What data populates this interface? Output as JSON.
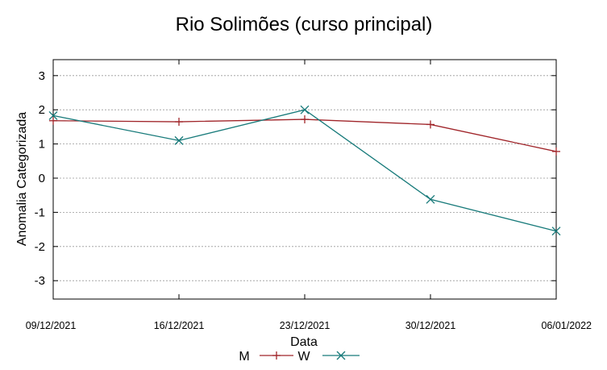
{
  "chart_data": {
    "type": "line",
    "title": "Rio Solimões (curso principal)",
    "xlabel": "Data",
    "ylabel": "Anomalia Categorizada",
    "categories": [
      "09/12/2021",
      "16/12/2021",
      "23/12/2021",
      "30/12/2021",
      "06/01/2022"
    ],
    "yticks": [
      "3",
      "2",
      "1",
      "0",
      "-1",
      "-2",
      "-3"
    ],
    "ylim": [
      -3.5,
      3.5
    ],
    "grid": true,
    "legend_position": "bottom",
    "series": [
      {
        "name": "M",
        "color": "#a0252a",
        "marker": "plus",
        "values": [
          1.68,
          1.65,
          1.72,
          1.57,
          0.78
        ]
      },
      {
        "name": "W",
        "color": "#177a7a",
        "marker": "cross",
        "values": [
          1.83,
          1.1,
          2.0,
          -0.62,
          -1.55
        ]
      }
    ]
  }
}
